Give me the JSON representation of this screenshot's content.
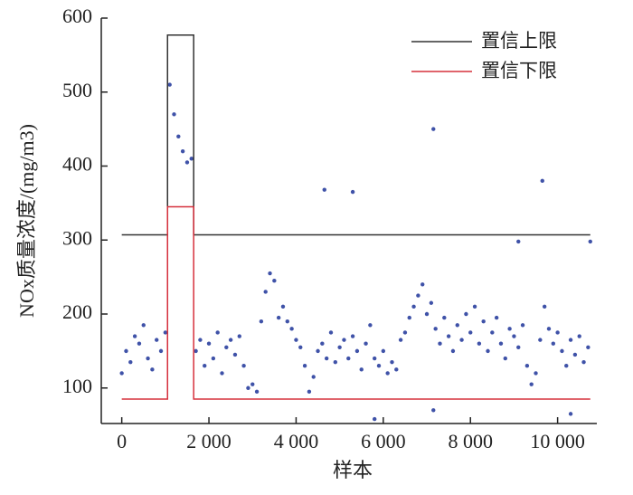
{
  "chart_data": {
    "type": "scatter",
    "x_label": "样本",
    "y_label": "NOx质量浓度/(mg/m3)",
    "xlim": [
      -470,
      10900
    ],
    "ylim": [
      52,
      600
    ],
    "xticks": [
      0,
      {
        "value": 2000,
        "label": "2 000"
      },
      {
        "value": 4000,
        "label": "4 000"
      },
      {
        "value": 6000,
        "label": "6 000"
      },
      {
        "value": 8000,
        "label": "8 000"
      },
      {
        "value": 10000,
        "label": "10 000"
      }
    ],
    "yticks": [
      100,
      200,
      300,
      400,
      500,
      600
    ],
    "legend": "top-right",
    "points": {
      "color": "#3f52a8",
      "x": [
        0,
        100,
        200,
        300,
        400,
        500,
        600,
        700,
        800,
        900,
        1000,
        1100,
        1200,
        1300,
        1400,
        1500,
        1600,
        1700,
        1800,
        1900,
        2000,
        2100,
        2200,
        2300,
        2400,
        2500,
        2600,
        2700,
        2800,
        2900,
        3000,
        3100,
        3200,
        3300,
        3400,
        3500,
        3600,
        3700,
        3800,
        3900,
        4000,
        4100,
        4200,
        4300,
        4400,
        4500,
        4600,
        4700,
        4800,
        4900,
        5000,
        5100,
        5200,
        5300,
        5400,
        5500,
        5600,
        5700,
        5800,
        5900,
        6000,
        6100,
        6200,
        6300,
        6400,
        6500,
        6600,
        6700,
        6800,
        6900,
        7000,
        7100,
        7200,
        7300,
        7400,
        7500,
        7600,
        7700,
        7800,
        7900,
        8000,
        8100,
        8200,
        8300,
        8400,
        8500,
        8600,
        8700,
        8800,
        8900,
        9000,
        9100,
        9200,
        9300,
        9400,
        9500,
        9600,
        9700,
        9800,
        9900,
        10000,
        10100,
        10200,
        10300,
        10400,
        10500,
        10600,
        10700,
        4650,
        5300,
        7150,
        9650,
        9100,
        10750,
        5800,
        7150,
        10300
      ],
      "values": [
        120,
        150,
        135,
        170,
        160,
        185,
        140,
        125,
        165,
        150,
        175,
        510,
        470,
        440,
        420,
        405,
        410,
        150,
        165,
        130,
        160,
        140,
        175,
        120,
        155,
        165,
        145,
        170,
        130,
        100,
        105,
        95,
        190,
        230,
        255,
        245,
        195,
        210,
        190,
        180,
        165,
        155,
        130,
        95,
        115,
        150,
        160,
        140,
        175,
        135,
        155,
        165,
        140,
        170,
        150,
        125,
        160,
        185,
        140,
        130,
        150,
        120,
        135,
        125,
        165,
        175,
        195,
        210,
        225,
        240,
        200,
        215,
        180,
        160,
        195,
        170,
        150,
        185,
        165,
        200,
        175,
        210,
        160,
        190,
        150,
        175,
        195,
        160,
        140,
        180,
        170,
        155,
        185,
        130,
        105,
        120,
        165,
        210,
        180,
        160,
        175,
        150,
        130,
        165,
        145,
        170,
        135,
        155,
        368,
        365,
        450,
        380,
        298,
        298,
        58,
        70,
        65
      ]
    },
    "series": [
      {
        "name": "置信上限",
        "color": "#333333",
        "x": [
          0,
          1050,
          1050,
          1650,
          1650,
          10750
        ],
        "values": [
          307,
          307,
          577,
          577,
          307,
          307
        ]
      },
      {
        "name": "置信下限",
        "color": "#d6303c",
        "x": [
          0,
          1050,
          1050,
          1650,
          1650,
          10750
        ],
        "values": [
          85,
          85,
          345,
          345,
          85,
          85
        ]
      }
    ]
  }
}
